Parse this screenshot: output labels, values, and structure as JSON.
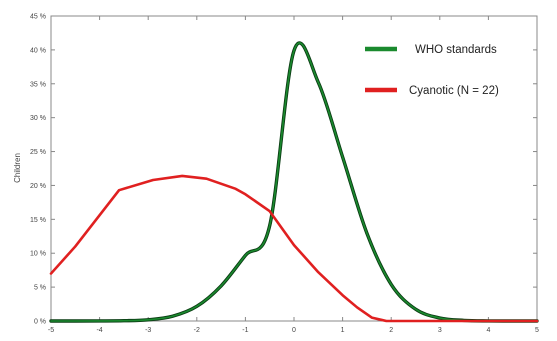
{
  "chart_data": {
    "type": "line",
    "title": "",
    "xlabel": "",
    "ylabel": "Children",
    "xlim": [
      -5,
      5
    ],
    "ylim": [
      0,
      45
    ],
    "x_ticks": [
      "-5",
      "-4",
      "-3",
      "-2",
      "-1",
      "0",
      "1",
      "2",
      "3",
      "4",
      "5"
    ],
    "y_ticks": [
      "0 %",
      "5 %",
      "10 %",
      "15 %",
      "20 %",
      "25 %",
      "30 %",
      "35 %",
      "40 %",
      "45 %"
    ],
    "grid": false,
    "legend": "top-right",
    "series": [
      {
        "name": "WHO standards",
        "color": "#1a8a2e",
        "values": [
          [
            -5,
            0.0
          ],
          [
            -4.5,
            0.0
          ],
          [
            -4,
            0.01
          ],
          [
            -3.5,
            0.04
          ],
          [
            -3,
            0.18
          ],
          [
            -2.5,
            0.7
          ],
          [
            -2,
            2.16
          ],
          [
            -1.5,
            5.18
          ],
          [
            -1,
            9.68
          ],
          [
            -0.5,
            14.08
          ],
          [
            0,
            39.9
          ],
          [
            0.5,
            35.2
          ],
          [
            1,
            24.2
          ],
          [
            1.5,
            12.95
          ],
          [
            2,
            5.4
          ],
          [
            2.5,
            1.75
          ],
          [
            3,
            0.44
          ],
          [
            3.5,
            0.09
          ],
          [
            4,
            0.01
          ],
          [
            4.5,
            0.0
          ],
          [
            5,
            0.0
          ]
        ]
      },
      {
        "name": "Cyanotic (N = 22)",
        "color": "#e02020",
        "values": [
          [
            -5,
            7
          ],
          [
            -4.5,
            11
          ],
          [
            -3.6,
            19.3
          ],
          [
            -2.9,
            20.8
          ],
          [
            -2.3,
            21.4
          ],
          [
            -1.8,
            21
          ],
          [
            -1.2,
            19.5
          ],
          [
            -1,
            18.7
          ],
          [
            -0.5,
            16.2
          ],
          [
            0,
            11.2
          ],
          [
            0.5,
            7.2
          ],
          [
            1,
            3.8
          ],
          [
            1.3,
            2
          ],
          [
            1.6,
            0.5
          ],
          [
            1.9,
            0
          ],
          [
            5,
            0
          ]
        ]
      }
    ]
  }
}
